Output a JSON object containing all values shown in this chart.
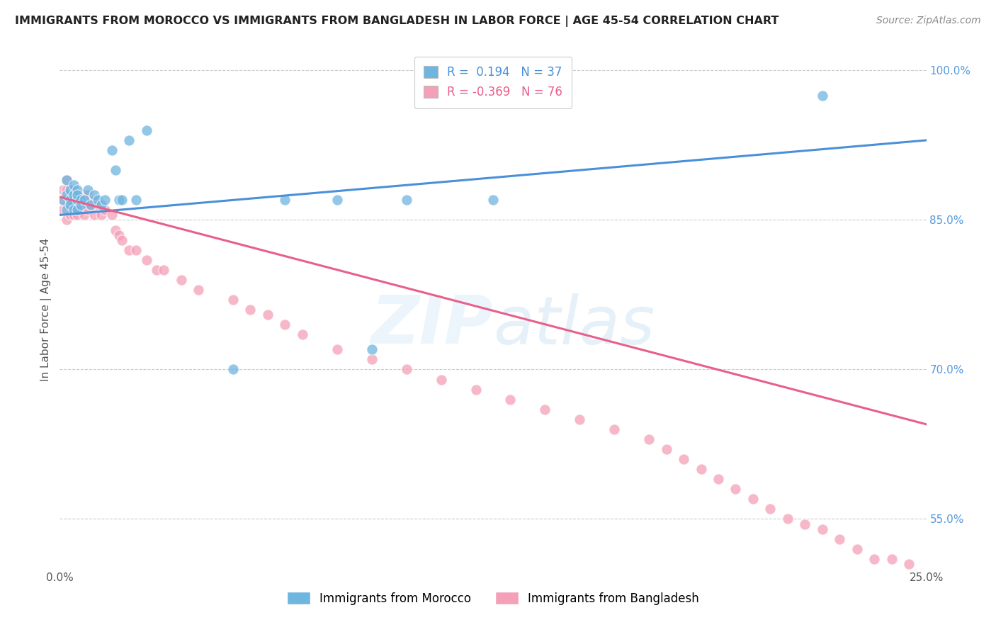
{
  "title": "IMMIGRANTS FROM MOROCCO VS IMMIGRANTS FROM BANGLADESH IN LABOR FORCE | AGE 45-54 CORRELATION CHART",
  "source": "Source: ZipAtlas.com",
  "ylabel_label": "In Labor Force | Age 45-54",
  "xlim": [
    0.0,
    0.25
  ],
  "ylim": [
    0.5,
    1.02
  ],
  "yticks": [
    0.55,
    0.7,
    0.85,
    1.0
  ],
  "ytick_labels": [
    "55.0%",
    "70.0%",
    "85.0%",
    "100.0%"
  ],
  "xtick_labels": [
    "0.0%",
    "25.0%"
  ],
  "morocco_color": "#6eb5e0",
  "bangladesh_color": "#f4a0b8",
  "morocco_line_color": "#4a90d9",
  "bangladesh_line_color": "#e8608a",
  "morocco_R": 0.194,
  "morocco_N": 37,
  "bangladesh_R": -0.369,
  "bangladesh_N": 76,
  "legend_morocco": "Immigrants from Morocco",
  "legend_bangladesh": "Immigrants from Bangladesh",
  "morocco_scatter_x": [
    0.001,
    0.002,
    0.002,
    0.002,
    0.003,
    0.003,
    0.003,
    0.004,
    0.004,
    0.004,
    0.005,
    0.005,
    0.005,
    0.005,
    0.006,
    0.006,
    0.007,
    0.008,
    0.009,
    0.01,
    0.011,
    0.012,
    0.013,
    0.015,
    0.016,
    0.017,
    0.018,
    0.02,
    0.022,
    0.025,
    0.05,
    0.065,
    0.08,
    0.09,
    0.1,
    0.125,
    0.22
  ],
  "morocco_scatter_y": [
    0.87,
    0.875,
    0.86,
    0.89,
    0.87,
    0.88,
    0.865,
    0.875,
    0.885,
    0.86,
    0.87,
    0.88,
    0.86,
    0.875,
    0.87,
    0.865,
    0.87,
    0.88,
    0.865,
    0.875,
    0.87,
    0.865,
    0.87,
    0.92,
    0.9,
    0.87,
    0.87,
    0.93,
    0.87,
    0.94,
    0.7,
    0.87,
    0.87,
    0.72,
    0.87,
    0.87,
    0.975
  ],
  "bangladesh_scatter_x": [
    0.001,
    0.001,
    0.001,
    0.002,
    0.002,
    0.002,
    0.002,
    0.002,
    0.003,
    0.003,
    0.003,
    0.003,
    0.003,
    0.004,
    0.004,
    0.004,
    0.004,
    0.005,
    0.005,
    0.005,
    0.005,
    0.006,
    0.006,
    0.006,
    0.007,
    0.007,
    0.007,
    0.008,
    0.008,
    0.009,
    0.01,
    0.01,
    0.011,
    0.012,
    0.013,
    0.015,
    0.016,
    0.017,
    0.018,
    0.02,
    0.022,
    0.025,
    0.028,
    0.03,
    0.035,
    0.04,
    0.05,
    0.055,
    0.06,
    0.065,
    0.07,
    0.08,
    0.09,
    0.1,
    0.11,
    0.12,
    0.13,
    0.14,
    0.15,
    0.16,
    0.17,
    0.175,
    0.18,
    0.185,
    0.19,
    0.195,
    0.2,
    0.205,
    0.21,
    0.215,
    0.22,
    0.225,
    0.23,
    0.235,
    0.24,
    0.245
  ],
  "bangladesh_scatter_y": [
    0.87,
    0.86,
    0.88,
    0.87,
    0.88,
    0.85,
    0.89,
    0.865,
    0.875,
    0.865,
    0.88,
    0.855,
    0.87,
    0.875,
    0.855,
    0.865,
    0.88,
    0.87,
    0.86,
    0.875,
    0.855,
    0.87,
    0.86,
    0.875,
    0.865,
    0.875,
    0.855,
    0.86,
    0.875,
    0.865,
    0.87,
    0.855,
    0.865,
    0.855,
    0.86,
    0.855,
    0.84,
    0.835,
    0.83,
    0.82,
    0.82,
    0.81,
    0.8,
    0.8,
    0.79,
    0.78,
    0.77,
    0.76,
    0.755,
    0.745,
    0.735,
    0.72,
    0.71,
    0.7,
    0.69,
    0.68,
    0.67,
    0.66,
    0.65,
    0.64,
    0.63,
    0.62,
    0.61,
    0.6,
    0.59,
    0.58,
    0.57,
    0.56,
    0.55,
    0.545,
    0.54,
    0.53,
    0.52,
    0.51,
    0.51,
    0.505
  ]
}
